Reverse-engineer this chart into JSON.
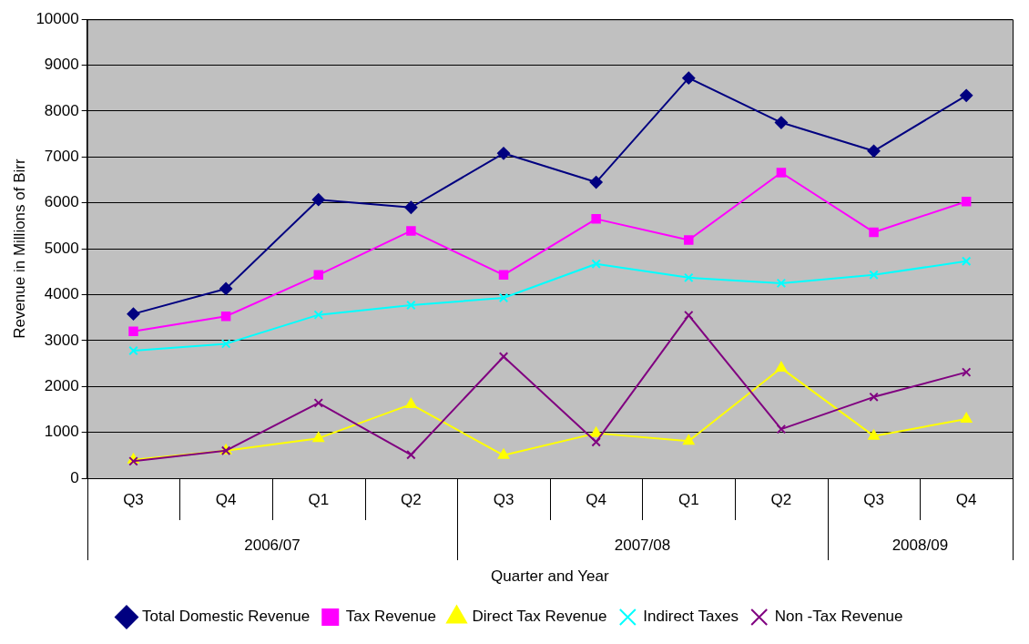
{
  "chart_data": {
    "type": "line",
    "xlabel": "Quarter and Year",
    "ylabel": "Revenue in Millions of Birr",
    "categories": [
      "Q3",
      "Q4",
      "Q1",
      "Q2",
      "Q3",
      "Q4",
      "Q1",
      "Q2",
      "Q3",
      "Q4"
    ],
    "annotations": [
      "2006/07",
      "2007/08",
      "2008/09"
    ],
    "ylim": [
      0,
      10000
    ],
    "yticks": [
      0,
      1000,
      2000,
      3000,
      4000,
      5000,
      6000,
      7000,
      8000,
      9000,
      10000
    ],
    "grid": "y",
    "legend": "bottom",
    "line_style": "solid",
    "series": [
      {
        "name": "Total Domestic Revenue",
        "color": "#000080",
        "marker": "diamond",
        "values": [
          3580,
          4130,
          6070,
          5900,
          7080,
          6450,
          8720,
          7750,
          7130,
          8340
        ]
      },
      {
        "name": "Tax Revenue",
        "color": "#ff00ff",
        "marker": "square",
        "values": [
          3200,
          3530,
          4430,
          5390,
          4430,
          5650,
          5190,
          6660,
          5360,
          6030
        ]
      },
      {
        "name": "Direct Tax Revenue",
        "color": "#ffff00",
        "marker": "triangle",
        "values": [
          400,
          600,
          870,
          1610,
          500,
          980,
          810,
          2400,
          920,
          1290
        ]
      },
      {
        "name": "Indirect Taxes",
        "color": "#00ffff",
        "marker": "cross",
        "values": [
          2780,
          2930,
          3560,
          3770,
          3930,
          4670,
          4370,
          4250,
          4430,
          4730
        ]
      },
      {
        "name": "Non -Tax Revenue",
        "color": "#800080",
        "marker": "cross",
        "values": [
          370,
          600,
          1640,
          510,
          2650,
          790,
          3550,
          1070,
          1770,
          2310
        ]
      }
    ]
  }
}
